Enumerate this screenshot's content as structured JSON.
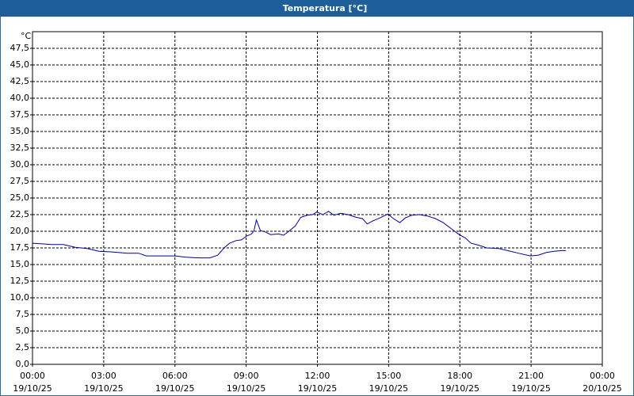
{
  "chart_data": {
    "type": "line",
    "title": "Temperatura [°C]",
    "ylabel": "°C",
    "x": [
      0,
      0.47,
      0.8,
      1.3,
      1.8,
      2.3,
      2.8,
      3.3,
      4.0,
      4.47,
      4.8,
      5.3,
      6.0,
      6.47,
      7.0,
      7.47,
      7.8,
      8.07,
      8.3,
      8.57,
      8.8,
      9.03,
      9.23,
      9.33,
      9.43,
      9.6,
      9.8,
      10.03,
      10.37,
      10.57,
      10.8,
      11.07,
      11.3,
      11.57,
      11.8,
      11.97,
      12.23,
      12.47,
      12.7,
      12.97,
      13.3,
      13.63,
      13.9,
      14.1,
      14.3,
      14.63,
      14.97,
      15.2,
      15.47,
      15.7,
      15.97,
      16.3,
      16.63,
      16.97,
      17.3,
      17.63,
      17.97,
      18.23,
      18.47,
      18.8,
      19.13,
      19.63,
      20.13,
      20.47,
      20.97,
      21.3,
      21.63,
      21.97,
      22.3,
      22.47
    ],
    "values": [
      18.2,
      18.1,
      18.0,
      18.0,
      17.6,
      17.4,
      17.0,
      16.9,
      16.7,
      16.7,
      16.3,
      16.3,
      16.3,
      16.1,
      16.0,
      16.0,
      16.4,
      17.5,
      18.2,
      18.6,
      18.7,
      19.3,
      19.6,
      20.1,
      21.7,
      20.1,
      19.9,
      19.5,
      19.6,
      19.4,
      20.0,
      20.8,
      22.1,
      22.4,
      22.5,
      22.9,
      22.5,
      23.0,
      22.4,
      22.7,
      22.5,
      22.1,
      21.9,
      21.1,
      21.5,
      22.0,
      22.6,
      21.9,
      21.3,
      22.0,
      22.4,
      22.5,
      22.3,
      21.9,
      21.3,
      20.4,
      19.5,
      19.0,
      18.2,
      17.9,
      17.5,
      17.4,
      17.0,
      16.7,
      16.3,
      16.4,
      16.8,
      17.0,
      17.1,
      17.1
    ],
    "color": "#000099",
    "xlim": [
      0,
      24
    ],
    "xticks": [
      {
        "value": 0,
        "label": [
          "00:00",
          "19/10/25"
        ]
      },
      {
        "value": 3,
        "label": [
          "03:00",
          "19/10/25"
        ]
      },
      {
        "value": 6,
        "label": [
          "06:00",
          "19/10/25"
        ]
      },
      {
        "value": 9,
        "label": [
          "09:00",
          "19/10/25"
        ]
      },
      {
        "value": 12,
        "label": [
          "12:00",
          "19/10/25"
        ]
      },
      {
        "value": 15,
        "label": [
          "15:00",
          "19/10/25"
        ]
      },
      {
        "value": 18,
        "label": [
          "18:00",
          "19/10/25"
        ]
      },
      {
        "value": 21,
        "label": [
          "21:00",
          "19/10/25"
        ]
      },
      {
        "value": 24,
        "label": [
          "00:00",
          "20/10/25"
        ]
      }
    ],
    "ylim": [
      0,
      50
    ],
    "yticks": [
      {
        "value": 0,
        "label": "0,0"
      },
      {
        "value": 2.5,
        "label": "2,5"
      },
      {
        "value": 5,
        "label": "5,0"
      },
      {
        "value": 7.5,
        "label": "7,5"
      },
      {
        "value": 10,
        "label": "10,0"
      },
      {
        "value": 12.5,
        "label": "12,5"
      },
      {
        "value": 15,
        "label": "15,0"
      },
      {
        "value": 17.5,
        "label": "17,5"
      },
      {
        "value": 20,
        "label": "20,0"
      },
      {
        "value": 22.5,
        "label": "22,5"
      },
      {
        "value": 25,
        "label": "25,0"
      },
      {
        "value": 27.5,
        "label": "27,5"
      },
      {
        "value": 30,
        "label": "30,0"
      },
      {
        "value": 32.5,
        "label": "32,5"
      },
      {
        "value": 35,
        "label": "35,0"
      },
      {
        "value": 37.5,
        "label": "37,5"
      },
      {
        "value": 40,
        "label": "40,0"
      },
      {
        "value": 42.5,
        "label": "42,5"
      },
      {
        "value": 45,
        "label": "45,0"
      },
      {
        "value": 47.5,
        "label": "47,5"
      }
    ],
    "grid": true
  }
}
